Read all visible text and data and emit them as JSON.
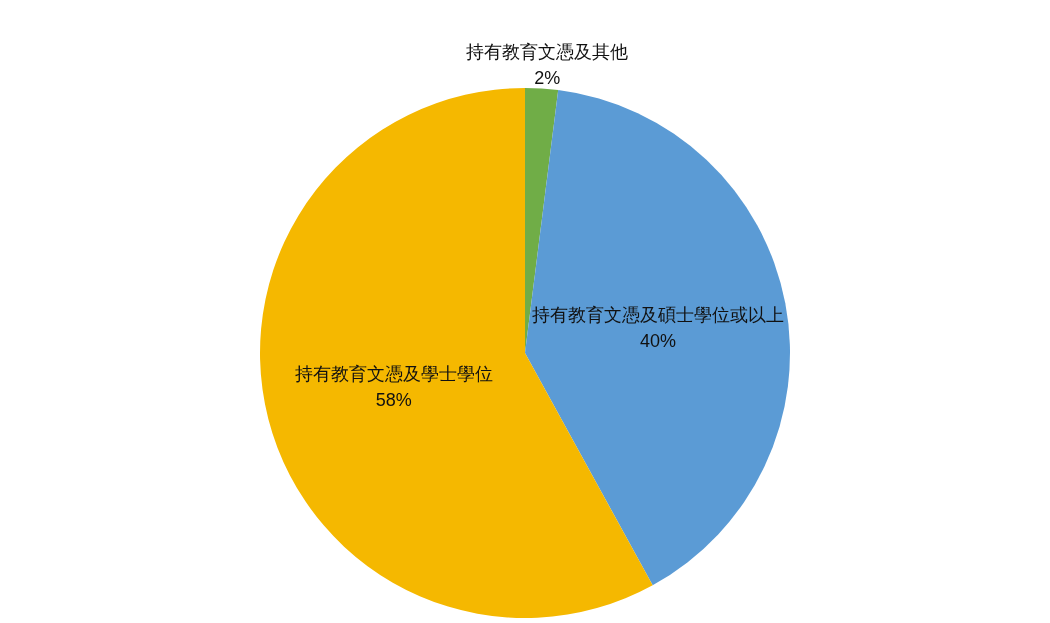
{
  "chart_data": {
    "type": "pie",
    "categories": [
      "持有教育文憑及其他",
      "持有教育文憑及碩士學位或以上",
      "持有教育文憑及學士學位"
    ],
    "values": [
      2,
      40,
      58
    ],
    "colors": [
      "#70ad47",
      "#5b9bd5",
      "#f5b800"
    ],
    "value_labels": [
      "2%",
      "40%",
      "58%"
    ]
  }
}
